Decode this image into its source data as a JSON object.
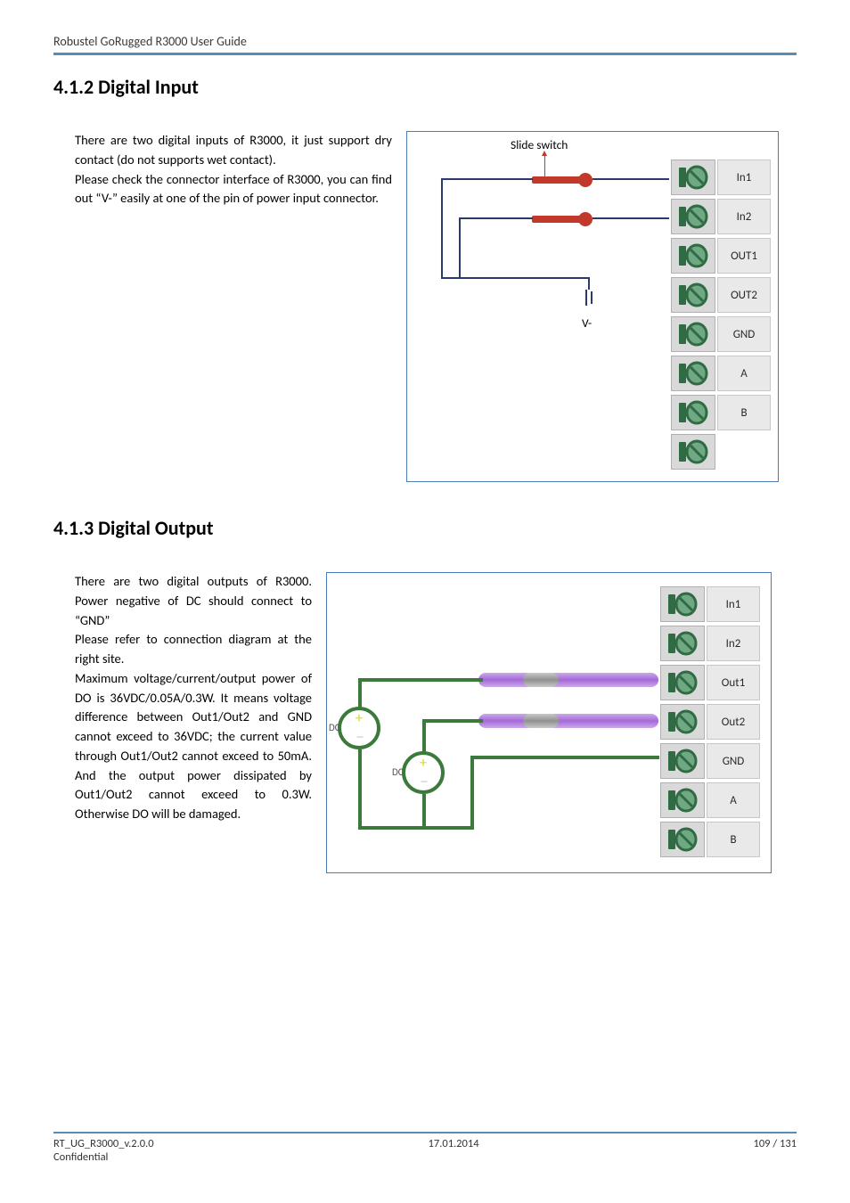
{
  "header": {
    "title": "Robustel GoRugged R3000 User Guide"
  },
  "section1": {
    "heading": "4.1.2 Digital Input",
    "para1": "There are two digital inputs of R3000, it just support dry contact (do not supports wet contact).",
    "para2": "Please check the connector interface of R3000, you can find out “V-” easily at one of the pin of power input connector."
  },
  "diagram1": {
    "slide_label": "Slide switch",
    "vminus_label": "V-",
    "terminals": [
      "In1",
      "In2",
      "OUT1",
      "OUT2",
      "GND",
      "A",
      "B",
      ""
    ],
    "colors": {
      "border": "#4a7db5",
      "switch": "#c0392b",
      "wire": "#2a3a6b",
      "term_block_bg": "#d9d9d9",
      "term_label_bg": "#e9e9e9",
      "screw_outer": "#2f6b43",
      "screw_inner": "#6fa883"
    }
  },
  "section2": {
    "heading": "4.1.3 Digital Output",
    "para1": "There are two digital outputs of R3000. Power negative of DC should connect to “GND”",
    "para2": "Please refer to connection diagram at the right site.",
    "para3": "Maximum voltage/current/output power of DO is 36VDC/0.05A/0.3W. It means voltage difference between Out1/Out2 and GND cannot exceed to 36VDC; the current value through Out1/Out2 cannot exceed to 50mA. And the output power dissipated by Out1/Out2 cannot exceed to 0.3W. Otherwise DO will be damaged."
  },
  "diagram2": {
    "terminals": [
      "In1",
      "In2",
      "Out1",
      "Out2",
      "GND",
      "A",
      "B"
    ],
    "dc_label": "DC",
    "colors": {
      "border": "#4a7db5",
      "purple": "#a569d9",
      "green": "#3c7a3c",
      "screw_outer": "#2f6b43",
      "screw_inner": "#6fa883"
    }
  },
  "footer": {
    "left": "RT_UG_R3000_v.2.0.0",
    "center": "17.01.2014",
    "right": "109 / 131",
    "confidential": "Confidential"
  }
}
